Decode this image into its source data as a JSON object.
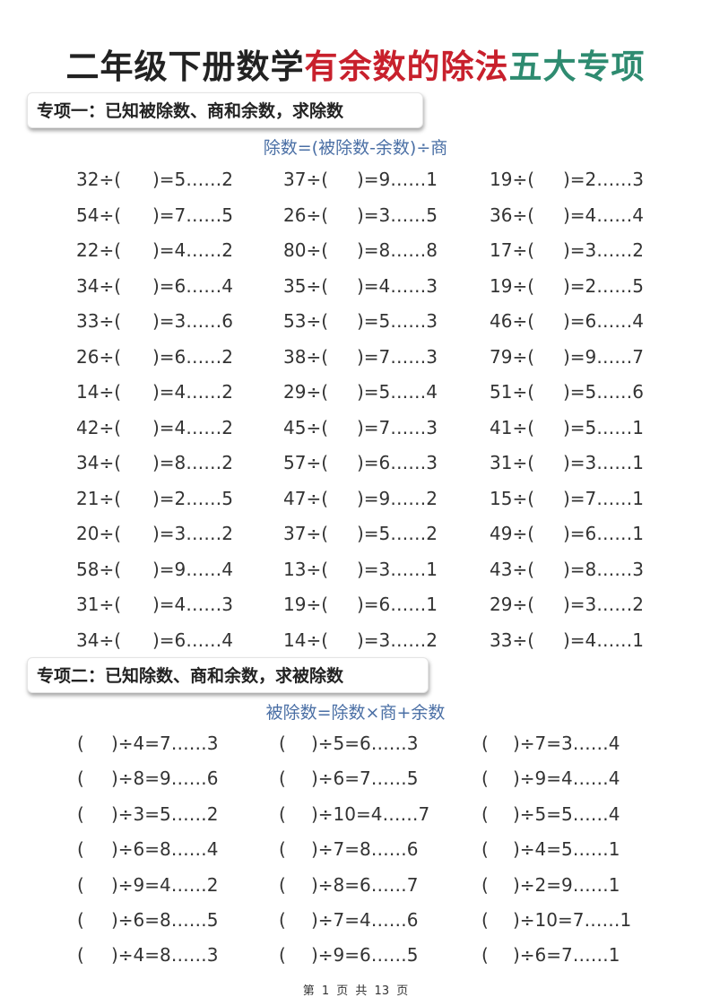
{
  "title": {
    "part1": "二年级下册数学",
    "part2": "有余数的除法",
    "part3": "五大专项"
  },
  "colors": {
    "title_red": "#c8202c",
    "title_green": "#2e8b70",
    "formula_blue": "#4a6fa5"
  },
  "section1": {
    "heading": "专项一：已知被除数、商和余数，求除数",
    "formula": "除数=(被除数-余数)÷商",
    "rows": [
      [
        [
          "32÷(",
          ")=5……2"
        ],
        [
          "37÷(",
          ")=9……1"
        ],
        [
          "19÷(",
          ")=2……3"
        ]
      ],
      [
        [
          "54÷(",
          ")=7……5"
        ],
        [
          "26÷(",
          ")=3……5"
        ],
        [
          "36÷(",
          ")=4……4"
        ]
      ],
      [
        [
          "22÷(",
          ")=4……2"
        ],
        [
          "80÷(",
          ")=8……8"
        ],
        [
          "17÷(",
          ")=3……2"
        ]
      ],
      [
        [
          "34÷(",
          ")=6……4"
        ],
        [
          "35÷(",
          ")=4……3"
        ],
        [
          "19÷(",
          ")=2……5"
        ]
      ],
      [
        [
          "33÷(",
          ")=3……6"
        ],
        [
          "53÷(",
          ")=5……3"
        ],
        [
          "46÷(",
          ")=6……4"
        ]
      ],
      [
        [
          "26÷(",
          ")=6……2"
        ],
        [
          "38÷(",
          ")=7……3"
        ],
        [
          "79÷(",
          ")=9……7"
        ]
      ],
      [
        [
          "14÷(",
          ")=4……2"
        ],
        [
          "29÷(",
          ")=5……4"
        ],
        [
          "51÷(",
          ")=5……6"
        ]
      ],
      [
        [
          "42÷(",
          ")=4……2"
        ],
        [
          "45÷(",
          ")=7……3"
        ],
        [
          "41÷(",
          ")=5……1"
        ]
      ],
      [
        [
          "34÷(",
          ")=8……2"
        ],
        [
          "57÷(",
          ")=6……3"
        ],
        [
          "31÷(",
          ")=3……1"
        ]
      ],
      [
        [
          "21÷(",
          ")=2……5"
        ],
        [
          "47÷(",
          ")=9……2"
        ],
        [
          "15÷(",
          ")=7……1"
        ]
      ],
      [
        [
          "20÷(",
          ")=3……2"
        ],
        [
          "37÷(",
          ")=5……2"
        ],
        [
          "49÷(",
          ")=6……1"
        ]
      ],
      [
        [
          "58÷(",
          ")=9……4"
        ],
        [
          "13÷(",
          ")=3……1"
        ],
        [
          "43÷(",
          ")=8……3"
        ]
      ],
      [
        [
          "31÷(",
          ")=4……3"
        ],
        [
          "19÷(",
          ")=6……1"
        ],
        [
          "29÷(",
          ")=3……2"
        ]
      ],
      [
        [
          "34÷(",
          ")=6……4"
        ],
        [
          "14÷(",
          ")=3……2"
        ],
        [
          "33÷(",
          ")=4……1"
        ]
      ]
    ]
  },
  "section2": {
    "heading": "专项二：已知除数、商和余数，求被除数",
    "formula": "被除数=除数×商+余数",
    "rows": [
      [
        [
          "(",
          ")÷4=7……3"
        ],
        [
          "(",
          ")÷5=6……3"
        ],
        [
          "(",
          ")÷7=3……4"
        ]
      ],
      [
        [
          "(",
          ")÷8=9……6"
        ],
        [
          "(",
          ")÷6=7……5"
        ],
        [
          "(",
          ")÷9=4……4"
        ]
      ],
      [
        [
          "(",
          ")÷3=5……2"
        ],
        [
          "(",
          ")÷10=4……7"
        ],
        [
          "(",
          ")÷5=5……4"
        ]
      ],
      [
        [
          "(",
          ")÷6=8……4"
        ],
        [
          "(",
          ")÷7=8……6"
        ],
        [
          "(",
          ")÷4=5……1"
        ]
      ],
      [
        [
          "(",
          ")÷9=4……2"
        ],
        [
          "(",
          ")÷8=6……7"
        ],
        [
          "(",
          ")÷2=9……1"
        ]
      ],
      [
        [
          "(",
          ")÷6=8……5"
        ],
        [
          "(",
          ")÷7=4……6"
        ],
        [
          "(",
          ")÷10=7……1"
        ]
      ],
      [
        [
          "(",
          ")÷4=8……3"
        ],
        [
          "(",
          ")÷9=6……5"
        ],
        [
          "(",
          ")÷6=7……1"
        ]
      ]
    ]
  },
  "footer": "第 1 页 共 13 页"
}
